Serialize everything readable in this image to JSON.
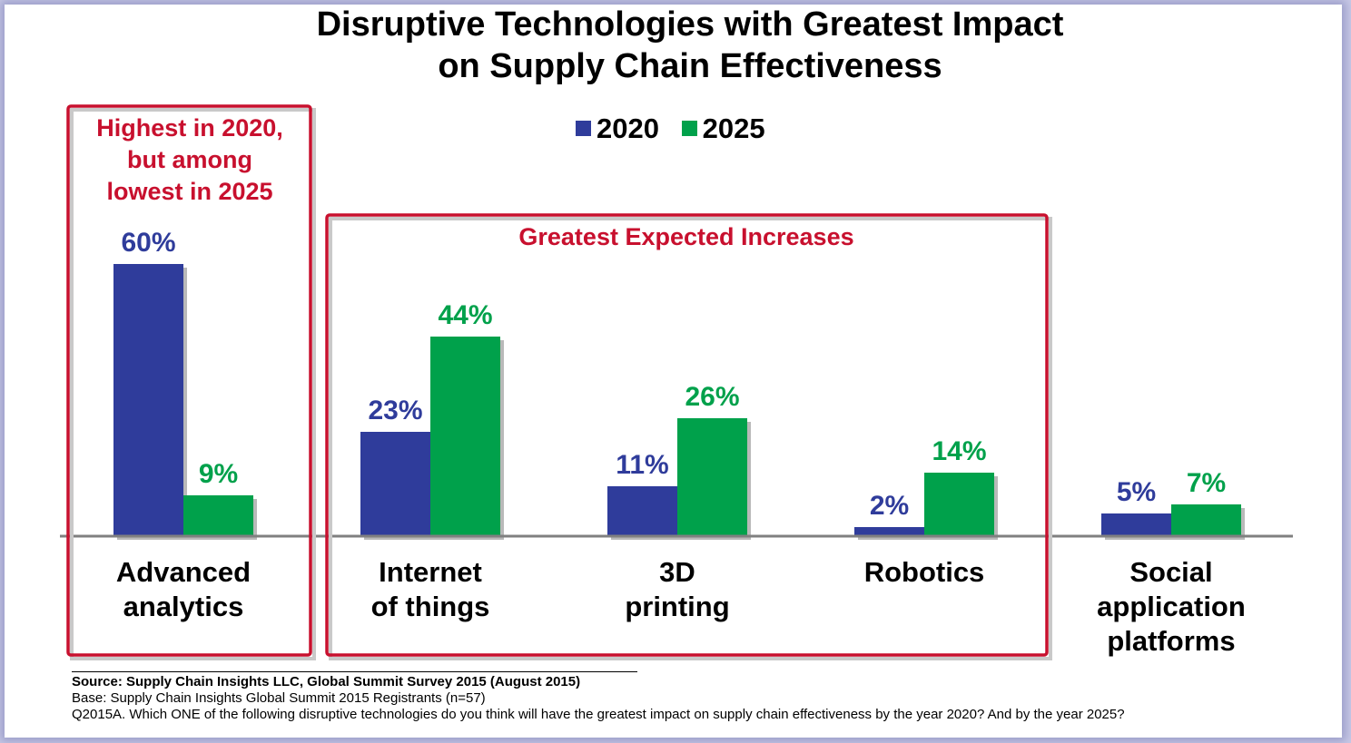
{
  "title_line1": "Disruptive Technologies with Greatest Impact",
  "title_line2": "on Supply Chain Effectiveness",
  "colors": {
    "series_2020": "#2f3c9b",
    "series_2025": "#00a14b",
    "highlight": "#c8102e",
    "axis": "#808080"
  },
  "chart_data": {
    "type": "bar",
    "categories": [
      [
        "Advanced",
        "analytics"
      ],
      [
        "Internet",
        "of things"
      ],
      [
        "3D",
        "printing"
      ],
      [
        "Robotics"
      ],
      [
        "Social",
        "application",
        "platforms"
      ]
    ],
    "series": [
      {
        "name": "2020",
        "values": [
          60,
          23,
          11,
          2,
          5
        ],
        "labels": [
          "60%",
          "23%",
          "11%",
          "2%",
          "5%"
        ]
      },
      {
        "name": "2025",
        "values": [
          9,
          44,
          26,
          14,
          7
        ],
        "labels": [
          "9%",
          "44%",
          "26%",
          "14%",
          "7%"
        ]
      }
    ],
    "ylim": [
      0,
      60
    ],
    "legend_position": "top-center",
    "annotations": {
      "box1_lines": [
        "Highest in 2020,",
        "but among",
        "lowest in 2025"
      ],
      "box2_title": "Greatest Expected Increases"
    }
  },
  "footer": {
    "source": "Source: Supply Chain Insights LLC, Global Summit Survey 2015 (August 2015)",
    "base": "Base:  Supply Chain Insights Global Summit 2015 Registrants  (n=57)",
    "question": "Q2015A. Which ONE of the following disruptive technologies do you think will have the greatest impact on supply chain effectiveness by the year 2020? And by the year 2025?"
  }
}
